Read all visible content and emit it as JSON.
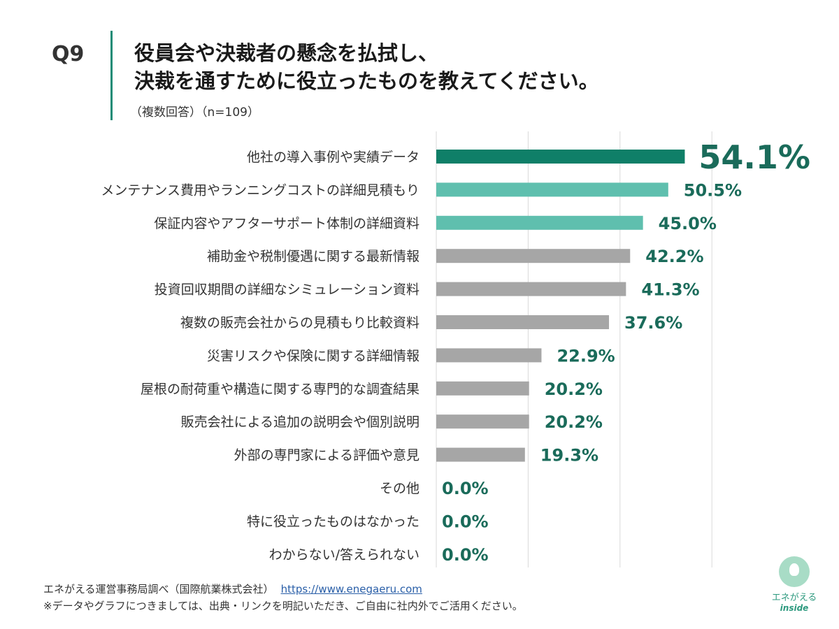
{
  "header": {
    "question_no": "Q9",
    "title_line1": "役員会や決裁者の懸念を払拭し、",
    "title_line2": "決裁を通すために役立ったものを教えてください。",
    "subtitle": "（複数回答）（n=109）"
  },
  "chart_data": {
    "type": "bar",
    "orientation": "horizontal",
    "categories": [
      "他社の導入事例や実績データ",
      "メンテナンス費用やランニングコストの詳細見積もり",
      "保証内容やアフターサポート体制の詳細資料",
      "補助金や税制優遇に関する最新情報",
      "投資回収期間の詳細なシミュレーション資料",
      "複数の販売会社からの見積もり比較資料",
      "災害リスクや保険に関する詳細情報",
      "屋根の耐荷重や構造に関する専門的な調査結果",
      "販売会社による追加の説明会や個別説明",
      "外部の専門家による評価や意見",
      "その他",
      "特に役立ったものはなかった",
      "わからない/答えられない"
    ],
    "values": [
      54.1,
      50.5,
      45.0,
      42.2,
      41.3,
      37.6,
      22.9,
      20.2,
      20.2,
      19.3,
      0.0,
      0.0,
      0.0
    ],
    "value_labels": [
      "54.1%",
      "50.5%",
      "45.0%",
      "42.2%",
      "41.3%",
      "37.6%",
      "22.9%",
      "20.2%",
      "20.2%",
      "19.3%",
      "0.0%",
      "0.0%",
      "0.0%"
    ],
    "xlim": [
      0,
      60
    ],
    "vertical_grid": true,
    "colors": {
      "top": "#0f7f68",
      "highlight": "#5fbfae",
      "other": "#a6a6a6",
      "label": "#1a6b5a",
      "grid": "#d9d9d9"
    },
    "bar_color_groups": [
      "top",
      "highlight",
      "highlight",
      "other",
      "other",
      "other",
      "other",
      "other",
      "other",
      "other",
      "other",
      "other",
      "other"
    ]
  },
  "footer": {
    "source": "エネがえる運営事務局調べ（国際航業株式会社）",
    "url": "https://www.enegaeru.com",
    "note": "※データやグラフにつきましては、出典・リンクを明記いただき、ご自由に社内外でご活用ください。"
  },
  "logo": {
    "text1": "エネがえる",
    "text2": "inside",
    "icon": "lightbulb-icon"
  }
}
